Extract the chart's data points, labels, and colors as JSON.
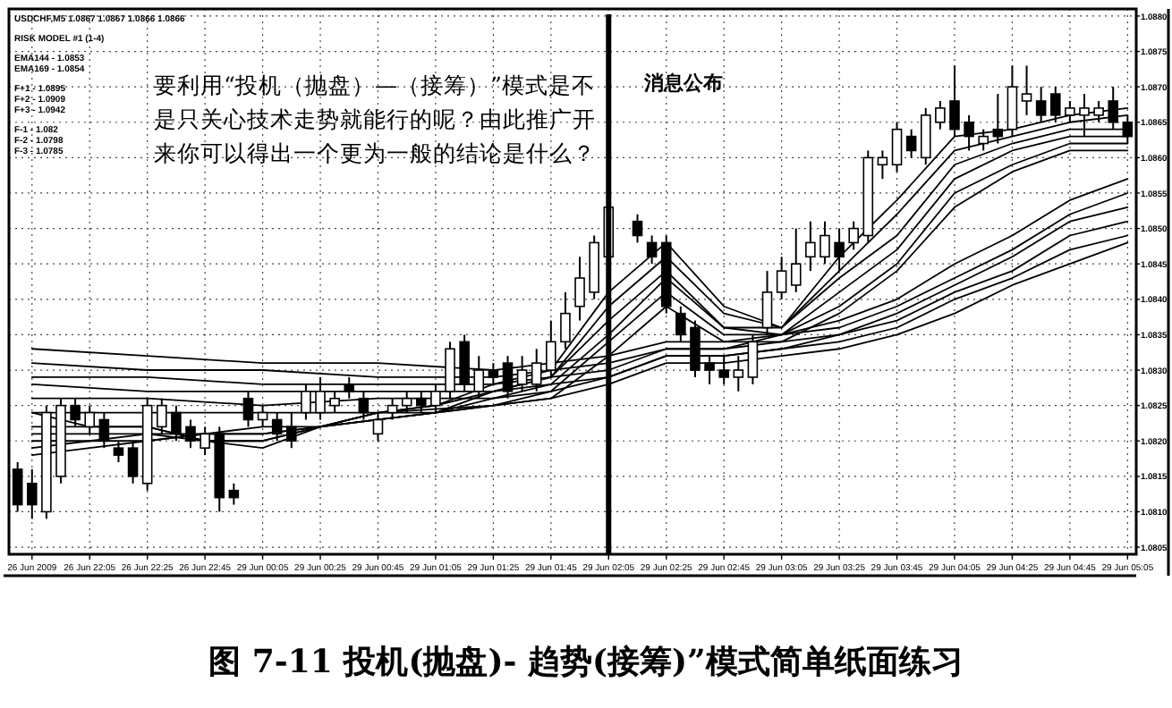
{
  "chart_data": {
    "type": "candlestick",
    "title": "图 7-11  投机(抛盘)- 趋势(接筹)”模式简单纸面练习",
    "annotations": [
      "USDCHF,M5  1.0867 1.0867 1.0866 1.0866",
      "RISK MODEL #1 (1-4)",
      "EMA144 - 1.0853",
      "EMA169 - 1.0854",
      "F+1 - 1.0895",
      "F+2 - 1.0909",
      "F+3 - 1.0942",
      "F-1 - 1.082",
      "F-2 - 1.0798",
      "F-3 - 1.0785",
      "要利用“投机（抛盘）—（接筹）”模式是不是只关心技术走势就能行的呢？由此推广开来你可以得出一个更为一般的结论是什么？"
    ],
    "categories": [
      null,
      "26 Jun 2009",
      null,
      null,
      null,
      "26 Jun 22:05",
      null,
      null,
      null,
      "26 Jun 22:25",
      null,
      null,
      null,
      "26 Jun 22:45",
      null,
      null,
      null,
      "29 Jun 00:05",
      null,
      null,
      null,
      "29 Jun 00:25",
      null,
      null,
      null,
      "29 Jun 00:45",
      null,
      null,
      null,
      "29 Jun 01:05",
      null,
      null,
      null,
      "29 Jun 01:25",
      null,
      null,
      null,
      "29 Jun 01:45",
      null,
      null,
      null,
      "29 Jun 02:05",
      null,
      null,
      null,
      "29 Jun 02:25",
      null,
      null,
      null,
      "29 Jun 02:45",
      null,
      null,
      null,
      "29 Jun 03:05",
      null,
      null,
      null,
      "29 Jun 03:25",
      null,
      null,
      null,
      "29 Jun 03:45",
      null,
      null,
      null,
      "29 Jun 04:05",
      null,
      null,
      null,
      "29 Jun 04:25",
      null,
      null,
      null,
      "29 Jun 04:45",
      null,
      null,
      null,
      "29 Jun 05:05"
    ],
    "ohlc": [
      [
        1.0816,
        1.0817,
        1.081,
        1.0811
      ],
      [
        1.0814,
        1.0816,
        1.0809,
        1.0811
      ],
      [
        1.081,
        1.0825,
        1.0809,
        1.0824
      ],
      [
        1.0815,
        1.0826,
        1.0814,
        1.0825
      ],
      [
        1.0825,
        1.0826,
        1.0822,
        1.0823
      ],
      [
        1.0822,
        1.0825,
        1.0821,
        1.0824
      ],
      [
        1.0823,
        1.0824,
        1.0819,
        1.082
      ],
      [
        1.0819,
        1.082,
        1.0817,
        1.0818
      ],
      [
        1.0819,
        1.082,
        1.0814,
        1.0815
      ],
      [
        1.0814,
        1.0826,
        1.0813,
        1.0825
      ],
      [
        1.0822,
        1.0826,
        1.0821,
        1.0825
      ],
      [
        1.0824,
        1.0825,
        1.082,
        1.0821
      ],
      [
        1.0822,
        1.0823,
        1.0819,
        1.082
      ],
      [
        1.0819,
        1.0822,
        1.0818,
        1.0821
      ],
      [
        1.0821,
        1.0822,
        1.081,
        1.0812
      ],
      [
        1.0813,
        1.0814,
        1.0811,
        1.0812
      ],
      [
        1.0826,
        1.0827,
        1.0822,
        1.0823
      ],
      [
        1.0823,
        1.0825,
        1.0822,
        1.0824
      ],
      [
        1.0823,
        1.0824,
        1.082,
        1.0821
      ],
      [
        1.0822,
        1.0824,
        1.0819,
        1.082
      ],
      [
        1.0824,
        1.0828,
        1.0823,
        1.0827
      ],
      [
        1.0824,
        1.0829,
        1.0823,
        1.0827
      ],
      [
        1.0825,
        1.0827,
        1.0824,
        1.0826
      ],
      [
        1.0828,
        1.0829,
        1.0826,
        1.0827
      ],
      [
        1.0826,
        1.0827,
        1.0823,
        1.0824
      ],
      [
        1.0821,
        1.0824,
        1.082,
        1.0823
      ],
      [
        1.0824,
        1.0826,
        1.0823,
        1.0825
      ],
      [
        1.0825,
        1.0827,
        1.0824,
        1.0826
      ],
      [
        1.0826,
        1.0827,
        1.0824,
        1.0825
      ],
      [
        1.0825,
        1.0828,
        1.0824,
        1.0827
      ],
      [
        1.0827,
        1.0834,
        1.0826,
        1.0833
      ],
      [
        1.0834,
        1.0835,
        1.0827,
        1.0828
      ],
      [
        1.0827,
        1.0832,
        1.0826,
        1.083
      ],
      [
        1.083,
        1.0831,
        1.0828,
        1.0829
      ],
      [
        1.0831,
        1.0832,
        1.0826,
        1.0827
      ],
      [
        1.0828,
        1.0832,
        1.0827,
        1.083
      ],
      [
        1.0828,
        1.0833,
        1.0827,
        1.0831
      ],
      [
        1.083,
        1.0837,
        1.0829,
        1.0834
      ],
      [
        1.0834,
        1.0841,
        1.0833,
        1.0838
      ],
      [
        1.0839,
        1.0846,
        1.0837,
        1.0843
      ],
      [
        1.0841,
        1.0849,
        1.084,
        1.0848
      ],
      [
        1.0846,
        1.0855,
        1.0845,
        1.0853
      ],
      null,
      [
        1.0851,
        1.0852,
        1.0848,
        1.0849
      ],
      [
        1.0848,
        1.0849,
        1.0845,
        1.0846
      ],
      [
        1.0848,
        1.0849,
        1.0838,
        1.0839
      ],
      [
        1.0838,
        1.0839,
        1.0834,
        1.0835
      ],
      [
        1.0836,
        1.0837,
        1.0829,
        1.083
      ],
      [
        1.0831,
        1.0832,
        1.0828,
        1.083
      ],
      [
        1.083,
        1.0832,
        1.0828,
        1.0829
      ],
      [
        1.0829,
        1.0832,
        1.0827,
        1.083
      ],
      [
        1.0829,
        1.0835,
        1.0828,
        1.0834
      ],
      [
        1.0836,
        1.0844,
        1.0835,
        1.0841
      ],
      [
        1.0841,
        1.0846,
        1.084,
        1.0844
      ],
      [
        1.0842,
        1.085,
        1.0841,
        1.0845
      ],
      [
        1.0846,
        1.0851,
        1.0844,
        1.0848
      ],
      [
        1.0846,
        1.0851,
        1.0845,
        1.0849
      ],
      [
        1.0848,
        1.085,
        1.0844,
        1.0846
      ],
      [
        1.0848,
        1.0851,
        1.0847,
        1.085
      ],
      [
        1.0849,
        1.0861,
        1.0848,
        1.086
      ],
      [
        1.0859,
        1.0861,
        1.0857,
        1.086
      ],
      [
        1.0859,
        1.0865,
        1.0858,
        1.0864
      ],
      [
        1.0863,
        1.0864,
        1.086,
        1.0861
      ],
      [
        1.086,
        1.0867,
        1.0859,
        1.0866
      ],
      [
        1.0865,
        1.0868,
        1.0864,
        1.0867
      ],
      [
        1.0868,
        1.0873,
        1.0863,
        1.0864
      ],
      [
        1.0865,
        1.0866,
        1.0861,
        1.0863
      ],
      [
        1.0862,
        1.0864,
        1.0861,
        1.0863
      ],
      [
        1.0864,
        1.0869,
        1.0862,
        1.0863
      ],
      [
        1.0864,
        1.0873,
        1.0863,
        1.087
      ],
      [
        1.0868,
        1.0873,
        1.0866,
        1.0869
      ],
      [
        1.0868,
        1.087,
        1.0865,
        1.0866
      ],
      [
        1.0869,
        1.087,
        1.0865,
        1.0866
      ],
      [
        1.0866,
        1.0868,
        1.0865,
        1.0867
      ],
      [
        1.0866,
        1.0869,
        1.0863,
        1.0867
      ],
      [
        1.0866,
        1.0868,
        1.0865,
        1.0867
      ],
      [
        1.0868,
        1.087,
        1.0864,
        1.0865
      ],
      [
        1.0865,
        1.0866,
        1.0862,
        1.0863
      ]
    ],
    "series": [
      {
        "type": "line",
        "color": "#000000",
        "x": [
          "26 Jun 2009",
          "26 Jun 22:25",
          "29 Jun 00:05",
          "29 Jun 00:45",
          "29 Jun 01:25",
          "29 Jun 01:45",
          "29 Jun 02:05",
          "29 Jun 02:25",
          "29 Jun 02:45",
          "29 Jun 03:05",
          "29 Jun 03:25",
          "29 Jun 03:45",
          "29 Jun 04:05",
          "29 Jun 04:25",
          "29 Jun 04:45",
          "29 Jun 05:05"
        ],
        "values": [
          1.0833,
          1.0832,
          1.0831,
          1.0831,
          1.083,
          1.0831,
          1.0832,
          1.0834,
          1.0834,
          1.0835,
          1.0837,
          1.084,
          1.0845,
          1.0849,
          1.0854,
          1.0857
        ]
      },
      {
        "type": "line",
        "color": "#000000",
        "x": [
          "26 Jun 2009",
          "26 Jun 22:25",
          "29 Jun 00:05",
          "29 Jun 00:45",
          "29 Jun 01:25",
          "29 Jun 01:45",
          "29 Jun 02:05",
          "29 Jun 02:25",
          "29 Jun 02:45",
          "29 Jun 03:05",
          "29 Jun 03:25",
          "29 Jun 03:45",
          "29 Jun 04:05",
          "29 Jun 04:25",
          "29 Jun 04:45",
          "29 Jun 05:05"
        ],
        "values": [
          1.0831,
          1.083,
          1.083,
          1.0829,
          1.0829,
          1.083,
          1.0831,
          1.0833,
          1.0833,
          1.0835,
          1.0836,
          1.0839,
          1.0843,
          1.0847,
          1.0852,
          1.0855
        ]
      },
      {
        "type": "line",
        "color": "#000000",
        "x": [
          "26 Jun 2009",
          "26 Jun 22:25",
          "29 Jun 00:05",
          "29 Jun 00:45",
          "29 Jun 01:25",
          "29 Jun 01:45",
          "29 Jun 02:05",
          "29 Jun 02:25",
          "29 Jun 02:45",
          "29 Jun 03:05",
          "29 Jun 03:25",
          "29 Jun 03:45",
          "29 Jun 04:05",
          "29 Jun 04:25",
          "29 Jun 04:45",
          "29 Jun 05:05"
        ],
        "values": [
          1.0829,
          1.0829,
          1.0828,
          1.0828,
          1.0828,
          1.0829,
          1.083,
          1.0833,
          1.0833,
          1.0834,
          1.0835,
          1.0838,
          1.0842,
          1.0846,
          1.0851,
          1.0853
        ]
      },
      {
        "type": "line",
        "color": "#000000",
        "x": [
          "26 Jun 2009",
          "26 Jun 22:25",
          "29 Jun 00:05",
          "29 Jun 00:45",
          "29 Jun 01:25",
          "29 Jun 01:45",
          "29 Jun 02:05",
          "29 Jun 02:25",
          "29 Jun 02:45",
          "29 Jun 03:05",
          "29 Jun 03:25",
          "29 Jun 03:45",
          "29 Jun 04:05",
          "29 Jun 04:25",
          "29 Jun 04:45",
          "29 Jun 05:05"
        ],
        "values": [
          1.0828,
          1.0827,
          1.0827,
          1.0827,
          1.0827,
          1.0828,
          1.0829,
          1.0832,
          1.0832,
          1.0833,
          1.0835,
          1.0837,
          1.0841,
          1.0844,
          1.0849,
          1.0851
        ]
      },
      {
        "type": "line",
        "color": "#000000",
        "x": [
          "26 Jun 2009",
          "26 Jun 22:25",
          "29 Jun 00:05",
          "29 Jun 00:45",
          "29 Jun 01:25",
          "29 Jun 01:45",
          "29 Jun 02:05",
          "29 Jun 02:25",
          "29 Jun 02:45",
          "29 Jun 03:05",
          "29 Jun 03:25",
          "29 Jun 03:45",
          "29 Jun 04:05",
          "29 Jun 04:25",
          "29 Jun 04:45",
          "29 Jun 05:05"
        ],
        "values": [
          1.0826,
          1.0826,
          1.0825,
          1.0826,
          1.0826,
          1.0827,
          1.0829,
          1.0832,
          1.0832,
          1.0833,
          1.0834,
          1.0836,
          1.084,
          1.0843,
          1.0847,
          1.0849
        ]
      },
      {
        "type": "line",
        "color": "#000000",
        "x": [
          "26 Jun 2009",
          "26 Jun 22:25",
          "29 Jun 00:05",
          "29 Jun 00:45",
          "29 Jun 01:25",
          "29 Jun 01:45",
          "29 Jun 02:05",
          "29 Jun 02:25",
          "29 Jun 02:45",
          "29 Jun 03:05",
          "29 Jun 03:25",
          "29 Jun 03:45",
          "29 Jun 04:05",
          "29 Jun 04:25",
          "29 Jun 04:45",
          "29 Jun 05:05"
        ],
        "values": [
          1.0824,
          1.0824,
          1.0824,
          1.0824,
          1.0825,
          1.0826,
          1.0828,
          1.0831,
          1.0831,
          1.0832,
          1.0833,
          1.0835,
          1.0838,
          1.0842,
          1.0845,
          1.0848
        ]
      },
      {
        "type": "line",
        "color": "#000000",
        "x": [
          "26 Jun 2009",
          "26 Jun 22:05",
          "26 Jun 22:25",
          "26 Jun 22:45",
          "29 Jun 00:05",
          "29 Jun 00:25",
          "29 Jun 00:45",
          "29 Jun 01:05",
          "29 Jun 01:25",
          "29 Jun 01:45",
          "29 Jun 02:05",
          "29 Jun 02:25",
          "29 Jun 02:45",
          "29 Jun 03:05",
          "29 Jun 03:25",
          "29 Jun 03:45",
          "29 Jun 04:05",
          "29 Jun 04:25",
          "29 Jun 04:45",
          "29 Jun 05:05"
        ],
        "values": [
          1.0824,
          1.0822,
          1.0822,
          1.082,
          1.0819,
          1.0822,
          1.0824,
          1.0825,
          1.0828,
          1.083,
          1.0841,
          1.0848,
          1.0839,
          1.0836,
          1.0846,
          1.0854,
          1.0863,
          1.0864,
          1.0866,
          1.0867
        ]
      },
      {
        "type": "line",
        "color": "#000000",
        "x": [
          "26 Jun 2009",
          "26 Jun 22:05",
          "26 Jun 22:25",
          "26 Jun 22:45",
          "29 Jun 00:05",
          "29 Jun 00:25",
          "29 Jun 00:45",
          "29 Jun 01:05",
          "29 Jun 01:25",
          "29 Jun 01:45",
          "29 Jun 02:05",
          "29 Jun 02:25",
          "29 Jun 02:45",
          "29 Jun 03:05",
          "29 Jun 03:25",
          "29 Jun 03:45",
          "29 Jun 04:05",
          "29 Jun 04:25",
          "29 Jun 04:45",
          "29 Jun 05:05"
        ],
        "values": [
          1.0822,
          1.0822,
          1.0822,
          1.082,
          1.082,
          1.0822,
          1.0824,
          1.0825,
          1.0827,
          1.0829,
          1.0839,
          1.0846,
          1.0838,
          1.0836,
          1.0844,
          1.0852,
          1.0861,
          1.0863,
          1.0865,
          1.0866
        ]
      },
      {
        "type": "line",
        "color": "#000000",
        "x": [
          "26 Jun 2009",
          "26 Jun 22:05",
          "26 Jun 22:25",
          "26 Jun 22:45",
          "29 Jun 00:05",
          "29 Jun 00:25",
          "29 Jun 00:45",
          "29 Jun 01:05",
          "29 Jun 01:25",
          "29 Jun 01:45",
          "29 Jun 02:05",
          "29 Jun 02:25",
          "29 Jun 02:45",
          "29 Jun 03:05",
          "29 Jun 03:25",
          "29 Jun 03:45",
          "29 Jun 04:05",
          "29 Jun 04:25",
          "29 Jun 04:45",
          "29 Jun 05:05"
        ],
        "values": [
          1.0821,
          1.0821,
          1.0821,
          1.082,
          1.082,
          1.0822,
          1.0824,
          1.0824,
          1.0827,
          1.0829,
          1.0837,
          1.0844,
          1.0836,
          1.0836,
          1.0843,
          1.0849,
          1.0859,
          1.0862,
          1.0864,
          1.0864
        ]
      },
      {
        "type": "line",
        "color": "#000000",
        "x": [
          "26 Jun 2009",
          "26 Jun 22:05",
          "26 Jun 22:25",
          "26 Jun 22:45",
          "29 Jun 00:05",
          "29 Jun 00:25",
          "29 Jun 00:45",
          "29 Jun 01:05",
          "29 Jun 01:25",
          "29 Jun 01:45",
          "29 Jun 02:05",
          "29 Jun 02:25",
          "29 Jun 02:45",
          "29 Jun 03:05",
          "29 Jun 03:25",
          "29 Jun 03:45",
          "29 Jun 04:05",
          "29 Jun 04:25",
          "29 Jun 04:45",
          "29 Jun 05:05"
        ],
        "values": [
          1.082,
          1.082,
          1.0821,
          1.0821,
          1.0821,
          1.0822,
          1.0823,
          1.0824,
          1.0826,
          1.0828,
          1.0835,
          1.0843,
          1.0836,
          1.0835,
          1.0841,
          1.0847,
          1.0857,
          1.0861,
          1.0863,
          1.0863
        ]
      },
      {
        "type": "line",
        "color": "#000000",
        "x": [
          "26 Jun 2009",
          "26 Jun 22:05",
          "26 Jun 22:25",
          "26 Jun 22:45",
          "29 Jun 00:05",
          "29 Jun 00:25",
          "29 Jun 00:45",
          "29 Jun 01:05",
          "29 Jun 01:25",
          "29 Jun 01:45",
          "29 Jun 02:05",
          "29 Jun 02:25",
          "29 Jun 02:45",
          "29 Jun 03:05",
          "29 Jun 03:25",
          "29 Jun 03:45",
          "29 Jun 04:05",
          "29 Jun 04:25",
          "29 Jun 04:45",
          "29 Jun 05:05"
        ],
        "values": [
          1.0819,
          1.082,
          1.082,
          1.0821,
          1.0821,
          1.0822,
          1.0823,
          1.0824,
          1.0825,
          1.0827,
          1.0834,
          1.0841,
          1.0835,
          1.0835,
          1.0839,
          1.0845,
          1.0855,
          1.0859,
          1.0862,
          1.0862
        ]
      },
      {
        "type": "line",
        "color": "#000000",
        "x": [
          "26 Jun 2009",
          "26 Jun 22:05",
          "26 Jun 22:25",
          "26 Jun 22:45",
          "29 Jun 00:05",
          "29 Jun 00:25",
          "29 Jun 00:45",
          "29 Jun 01:05",
          "29 Jun 01:25",
          "29 Jun 01:45",
          "29 Jun 02:05",
          "29 Jun 02:25",
          "29 Jun 02:45",
          "29 Jun 03:05",
          "29 Jun 03:25",
          "29 Jun 03:45",
          "29 Jun 04:05",
          "29 Jun 04:25",
          "29 Jun 04:45",
          "29 Jun 05:05"
        ],
        "values": [
          1.0818,
          1.0819,
          1.082,
          1.0821,
          1.0822,
          1.0822,
          1.0823,
          1.0824,
          1.0825,
          1.0826,
          1.0832,
          1.0839,
          1.0834,
          1.0834,
          1.0838,
          1.0844,
          1.0853,
          1.0858,
          1.0861,
          1.0861
        ]
      }
    ],
    "ref_lines": [
      {
        "axis": "x",
        "value": "29 Jun 02:05",
        "label": "消息公布"
      }
    ],
    "ylim": [
      1.0804,
      1.0881
    ],
    "yticks": [
      1.0805,
      {
        "value": 1.081,
        "label": "1.0810"
      },
      1.0815,
      {
        "value": 1.082,
        "label": "1.0820"
      },
      1.0825,
      {
        "value": 1.083,
        "label": "1.0830"
      },
      1.0835,
      {
        "value": 1.084,
        "label": "1.0840"
      },
      1.0845,
      {
        "value": 1.085,
        "label": "1.0850"
      },
      1.0855,
      {
        "value": 1.086,
        "label": "1.0860"
      },
      1.0865,
      {
        "value": 1.087,
        "label": "1.0870"
      },
      1.0875,
      {
        "value": 1.088,
        "label": "1.0880"
      }
    ],
    "grid": true
  }
}
